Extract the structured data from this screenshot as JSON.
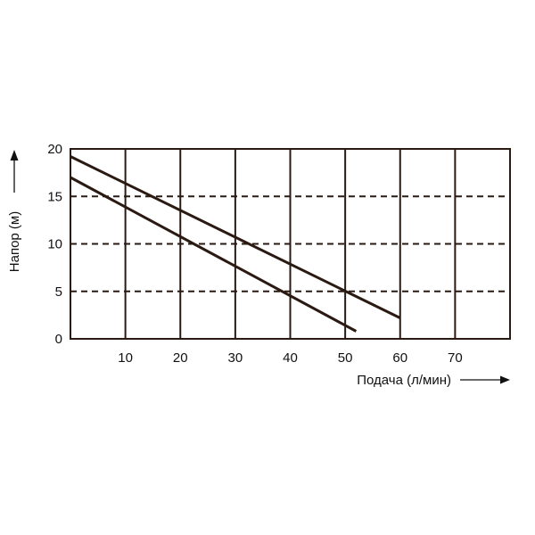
{
  "colors": {
    "ink": "#2a1a12",
    "background": "#ffffff",
    "text": "#111111"
  },
  "chart_data": {
    "type": "line",
    "title": "",
    "xlabel": "Подача (л/мин)",
    "ylabel": "Напор (м)",
    "xlim": [
      0,
      80
    ],
    "ylim": [
      0,
      20
    ],
    "x_ticks": [
      10,
      20,
      30,
      40,
      50,
      60,
      70
    ],
    "y_ticks": [
      0,
      5,
      10,
      15,
      20
    ],
    "grid": {
      "vertical": "solid",
      "horizontal": "dashed"
    },
    "legend": "none",
    "series": [
      {
        "x": [
          0,
          60
        ],
        "y": [
          19.2,
          2.2
        ]
      },
      {
        "x": [
          0,
          52
        ],
        "y": [
          17.0,
          0.8
        ]
      }
    ]
  }
}
